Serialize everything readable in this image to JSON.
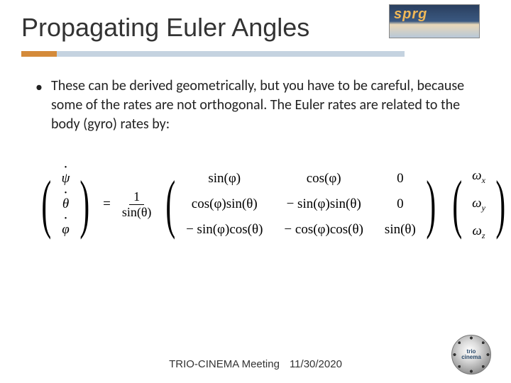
{
  "header": {
    "title": "Propagating Euler Angles",
    "accent_orange": "#d48a3a",
    "accent_blue": "#c5d3e0",
    "logo_text": "sprg"
  },
  "bullet": {
    "text": "These can be derived geometrically, but you have to be careful, because some of the rates are not orthogonal.  The Euler rates are related to the body (gyro) rates by:"
  },
  "equation": {
    "lhs": {
      "r1": "ψ",
      "r2": "θ",
      "r3": "φ"
    },
    "frac": {
      "num": "1",
      "den": "sin(θ)"
    },
    "matrix": {
      "r1c1": "sin(φ)",
      "r1c2": "cos(φ)",
      "r1c3": "0",
      "r2c1": "cos(φ)sin(θ)",
      "r2c2": "− sin(φ)sin(θ)",
      "r2c3": "0",
      "r3c1": "− sin(φ)cos(θ)",
      "r3c2": "− cos(φ)cos(θ)",
      "r3c3": "sin(θ)"
    },
    "rhs": {
      "omega": "ω",
      "x": "x",
      "y": "y",
      "z": "z"
    }
  },
  "footer": {
    "meeting": "TRIO-CINEMA Meeting",
    "date": "11/30/2020",
    "logo_top": "trio",
    "logo_bottom": "cinema"
  }
}
